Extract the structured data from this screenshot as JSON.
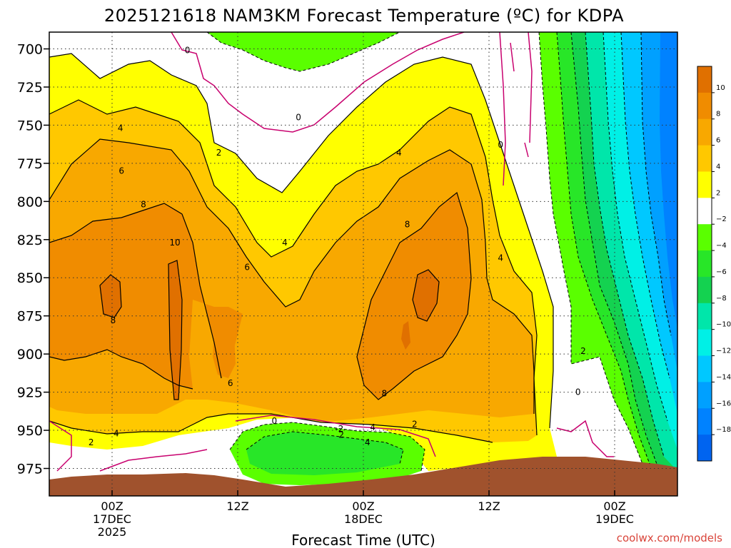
{
  "chart_data": {
    "type": "heatmap",
    "title": "2025121618 NAM3KM Forecast Temperature (ºC) for KDPA",
    "xlabel": "Forecast Time (UTC)",
    "credit": "coolwx.com/models",
    "x_ticks": [
      {
        "line1": "00Z",
        "line2": "17DEC",
        "line3": "2025"
      },
      {
        "line1": "12Z",
        "line2": "",
        "line3": ""
      },
      {
        "line1": "00Z",
        "line2": "18DEC",
        "line3": ""
      },
      {
        "line1": "12Z",
        "line2": "",
        "line3": ""
      },
      {
        "line1": "00Z",
        "line2": "19DEC",
        "line3": ""
      }
    ],
    "x_hours": [
      6,
      18,
      30,
      42,
      54
    ],
    "xlim_hours": [
      0,
      60
    ],
    "y_ticks": [
      "700",
      "725",
      "750",
      "775",
      "800",
      "825",
      "850",
      "875",
      "900",
      "925",
      "950",
      "975"
    ],
    "y_values": [
      700,
      725,
      750,
      775,
      800,
      825,
      850,
      875,
      900,
      925,
      950,
      975
    ],
    "ylim": [
      689,
      993
    ],
    "grid": true,
    "colorbar": {
      "labels": [
        "10",
        "8",
        "6",
        "4",
        "2",
        "−2",
        "−4",
        "−6",
        "−8",
        "−10",
        "−12",
        "−14",
        "−16",
        "−18"
      ],
      "levels": [
        10,
        8,
        6,
        4,
        2,
        -2,
        -4,
        -6,
        -8,
        -10,
        -12,
        -14,
        -16,
        -18
      ],
      "colors": [
        "#e07000",
        "#f08c00",
        "#f8a800",
        "#ffc800",
        "#ffff00",
        "#ffffff",
        "#5aff00",
        "#28e628",
        "#14d250",
        "#00e6aa",
        "#00f0e6",
        "#00c8ff",
        "#00a0ff",
        "#0082ff",
        "#0064f0"
      ]
    },
    "contour_labels": [
      {
        "text": "0",
        "hour": 13.2,
        "p": 701
      },
      {
        "text": "0",
        "hour": 23.8,
        "p": 745
      },
      {
        "text": "0",
        "hour": 43.1,
        "p": 763
      },
      {
        "text": "0",
        "hour": 50.5,
        "p": 925
      },
      {
        "text": "0",
        "hour": 21.5,
        "p": 944
      },
      {
        "text": "2",
        "hour": 16.2,
        "p": 768
      },
      {
        "text": "2",
        "hour": 51.0,
        "p": 898
      },
      {
        "text": "2",
        "hour": 4.0,
        "p": 958
      },
      {
        "text": "2",
        "hour": 27.9,
        "p": 953
      },
      {
        "text": "2",
        "hour": 34.9,
        "p": 946
      },
      {
        "text": "-2",
        "hour": 27.7,
        "p": 949
      },
      {
        "text": "4",
        "hour": 6.8,
        "p": 752
      },
      {
        "text": "4",
        "hour": 33.4,
        "p": 768
      },
      {
        "text": "4",
        "hour": 22.5,
        "p": 827
      },
      {
        "text": "4",
        "hour": 43.1,
        "p": 837
      },
      {
        "text": "4",
        "hour": 6.4,
        "p": 952
      },
      {
        "text": "4",
        "hour": 30.4,
        "p": 958
      },
      {
        "text": "4",
        "hour": 30.9,
        "p": 948
      },
      {
        "text": "6",
        "hour": 6.9,
        "p": 780
      },
      {
        "text": "6",
        "hour": 18.9,
        "p": 843
      },
      {
        "text": "6",
        "hour": 17.3,
        "p": 919
      },
      {
        "text": "8",
        "hour": 9.0,
        "p": 802
      },
      {
        "text": "8",
        "hour": 34.2,
        "p": 815
      },
      {
        "text": "8",
        "hour": 6.1,
        "p": 878
      },
      {
        "text": "8",
        "hour": 32.0,
        "p": 926
      },
      {
        "text": "10",
        "hour": 12.0,
        "p": 827
      }
    ]
  }
}
